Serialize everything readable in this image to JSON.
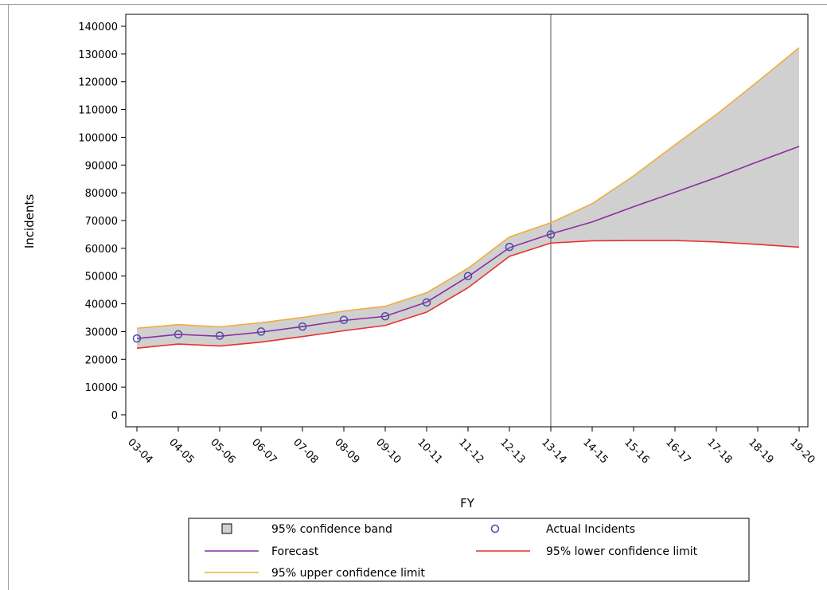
{
  "chart_data": {
    "type": "line",
    "categories": [
      "03-04",
      "04-05",
      "05-06",
      "06-07",
      "07-08",
      "08-09",
      "09-10",
      "10-11",
      "11-12",
      "12-13",
      "13-14",
      "14-15",
      "15-16",
      "16-17",
      "17-18",
      "18-19",
      "19-20"
    ],
    "xlabel": "FY",
    "ylabel": "Incidents",
    "ylim": [
      0,
      140000
    ],
    "yticks": [
      0,
      10000,
      20000,
      30000,
      40000,
      50000,
      60000,
      70000,
      80000,
      90000,
      100000,
      110000,
      120000,
      130000,
      140000
    ],
    "reference_line_at": "13-14",
    "series": [
      {
        "name": "Actual Incidents",
        "kind": "markers",
        "color": "#4b4ba8",
        "values": [
          27500,
          29000,
          28500,
          30000,
          31800,
          34200,
          35500,
          40500,
          50000,
          60500,
          65000,
          null,
          null,
          null,
          null,
          null,
          null
        ]
      },
      {
        "name": "Forecast",
        "kind": "line",
        "color": "#8b2f9e",
        "values": [
          27500,
          29000,
          28300,
          29800,
          31800,
          34000,
          35500,
          40600,
          49800,
          60200,
          65200,
          69500,
          75000,
          80200,
          85500,
          91200,
          96700
        ]
      },
      {
        "name": "95% lower confidence limit",
        "kind": "line",
        "color": "#e8312f",
        "values": [
          24000,
          25500,
          24800,
          26200,
          28200,
          30300,
          32200,
          37000,
          45800,
          57100,
          61900,
          62700,
          62800,
          62800,
          62300,
          61400,
          60400
        ]
      },
      {
        "name": "95% upper confidence limit",
        "kind": "line",
        "color": "#f0ad3c",
        "values": [
          31200,
          32500,
          31700,
          33200,
          35100,
          37400,
          39100,
          44000,
          52800,
          64100,
          69200,
          76100,
          86100,
          97300,
          108200,
          120100,
          132300
        ]
      },
      {
        "name": "95% confidence band",
        "kind": "band",
        "color": "#d0d0d0"
      }
    ],
    "legend": {
      "position": "bottom",
      "entries": [
        {
          "label": "95% confidence band",
          "symbol": "square",
          "color": "#d0d0d0"
        },
        {
          "label": "Actual Incidents",
          "symbol": "circle",
          "color": "#4b4ba8"
        },
        {
          "label": "Forecast",
          "symbol": "line",
          "color": "#8b2f9e"
        },
        {
          "label": "95% lower confidence limit",
          "symbol": "line",
          "color": "#e8312f"
        },
        {
          "label": "95% upper confidence limit",
          "symbol": "line",
          "color": "#f0ad3c"
        }
      ]
    },
    "grid": false
  }
}
